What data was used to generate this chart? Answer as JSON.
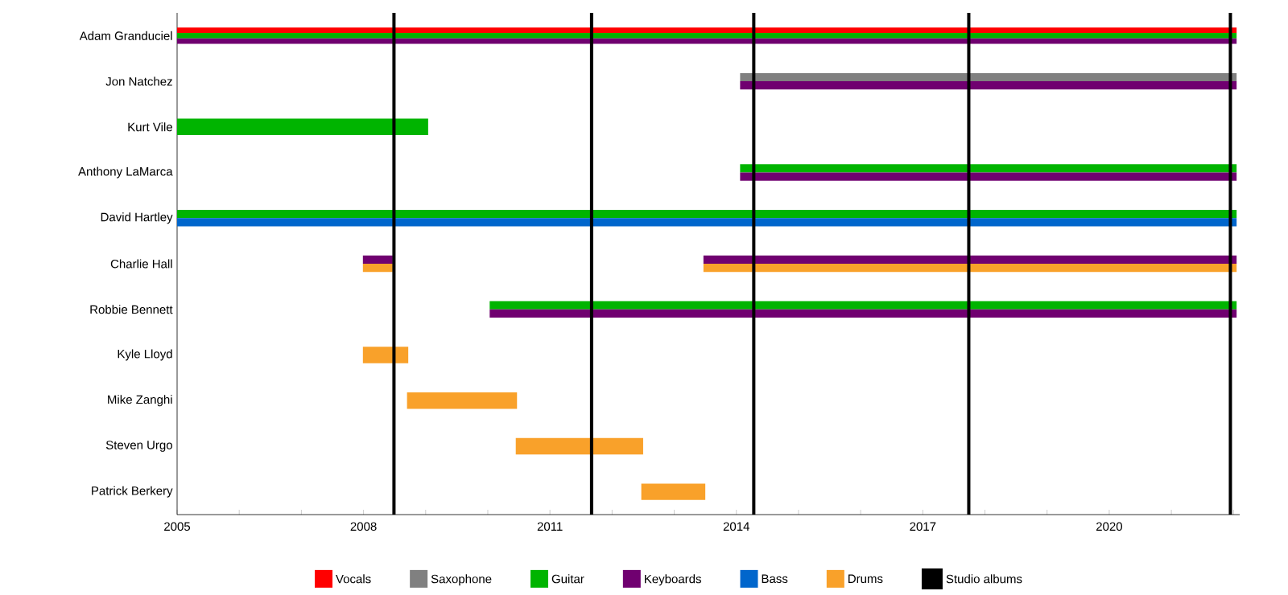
{
  "chart_data": {
    "type": "bar",
    "orientation": "horizontal",
    "categories": [
      "Adam Granduciel",
      "Jon Natchez",
      "Kurt Vile",
      "Anthony LaMarca",
      "David Hartley",
      "Charlie Hall",
      "Robbie Bennett",
      "Kyle Lloyd",
      "Mike Zanghi",
      "Steven Urgo",
      "Patrick Berkery"
    ],
    "series": [
      {
        "name": "Vocals",
        "color": "#ff0000",
        "base": [
          2005,
          null,
          null,
          null,
          null,
          null,
          null,
          null,
          null,
          null,
          null
        ],
        "values": [
          17.05,
          null,
          null,
          null,
          null,
          null,
          null,
          null,
          null,
          null,
          null
        ]
      },
      {
        "name": "Saxophone",
        "color": "#808080",
        "base": [
          null,
          2014.06,
          null,
          null,
          null,
          null,
          null,
          null,
          null,
          null,
          null
        ],
        "values": [
          null,
          7.99,
          null,
          null,
          null,
          null,
          null,
          null,
          null,
          null,
          null
        ]
      },
      {
        "name": "Guitar",
        "color": "#00b400",
        "base": [
          2005,
          null,
          2005,
          2014.06,
          2005,
          null,
          2010.03,
          null,
          null,
          null,
          null
        ],
        "values": [
          17.05,
          null,
          4.04,
          7.99,
          17.05,
          null,
          12.02,
          null,
          null,
          null,
          null
        ]
      },
      {
        "name": "Keyboards",
        "color": "#700070",
        "base": [
          2005,
          2014.06,
          null,
          2014.06,
          null,
          2013.47,
          2010.03,
          null,
          null,
          null,
          null
        ],
        "values": [
          17.05,
          7.99,
          null,
          7.99,
          null,
          8.58,
          12.02,
          null,
          null,
          null,
          null
        ]
      },
      {
        "name": "Bass",
        "color": "#0066cc",
        "base": [
          null,
          null,
          null,
          null,
          2005,
          null,
          null,
          null,
          null,
          null,
          null
        ],
        "values": [
          null,
          null,
          null,
          null,
          17.05,
          null,
          null,
          null,
          null,
          null,
          null
        ]
      },
      {
        "name": "Drums",
        "color": "#f9a12a",
        "base": [
          null,
          null,
          null,
          null,
          null,
          2013.47,
          null,
          2007.99,
          2008.7,
          2010.45,
          2012.47
        ],
        "values": [
          null,
          null,
          null,
          null,
          null,
          8.58,
          null,
          0.73,
          1.77,
          2.05,
          1.03
        ]
      },
      {
        "color": "#700070",
        "base": [
          null,
          null,
          null,
          null,
          null,
          2007.99,
          null,
          null,
          null,
          null,
          null
        ],
        "values": [
          null,
          null,
          null,
          null,
          null,
          0.48,
          null,
          null,
          null,
          null,
          null
        ]
      },
      {
        "color": "#f9a12a",
        "base": [
          null,
          null,
          null,
          null,
          null,
          2007.99,
          null,
          null,
          null,
          null,
          null
        ],
        "values": [
          null,
          null,
          null,
          null,
          null,
          0.48,
          null,
          null,
          null,
          null,
          null
        ]
      }
    ],
    "ref_lines": [
      {
        "axis": "x",
        "value": 2008.49,
        "label": "Studio albums",
        "color": "#000000"
      },
      {
        "axis": "x",
        "value": 2011.67,
        "color": "#000000"
      },
      {
        "axis": "x",
        "value": 2014.28,
        "color": "#000000"
      },
      {
        "axis": "x",
        "value": 2017.74,
        "color": "#000000"
      },
      {
        "axis": "x",
        "value": 2021.95,
        "color": "#000000"
      }
    ],
    "xlim": [
      2005,
      2022.1
    ],
    "xticks": [
      2005,
      {
        "value": 2006,
        "label": null
      },
      {
        "value": 2007,
        "label": null
      },
      2008,
      {
        "value": 2009,
        "label": null
      },
      {
        "value": 2010,
        "label": null
      },
      2011,
      {
        "value": 2012,
        "label": null
      },
      {
        "value": 2013,
        "label": null
      },
      2014,
      {
        "value": 2015,
        "label": null
      },
      {
        "value": 2016,
        "label": null
      },
      2017,
      {
        "value": 2018,
        "label": null
      },
      {
        "value": 2019,
        "label": null
      },
      2020,
      {
        "value": 2021,
        "label": null
      },
      {
        "value": 2022,
        "label": null
      }
    ],
    "legend": "bottom"
  }
}
